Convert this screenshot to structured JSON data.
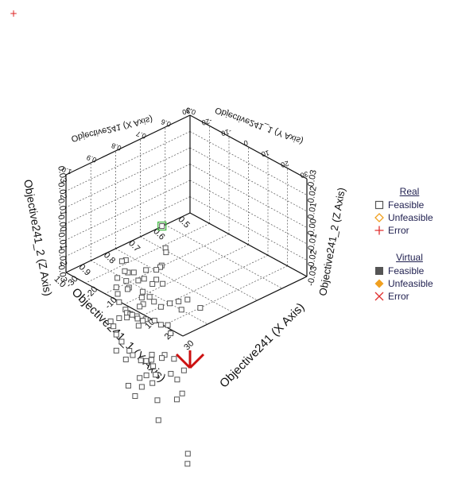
{
  "corner_marker": "+",
  "legend": {
    "real": {
      "title": "Real",
      "items": [
        {
          "label": "Feasible",
          "symbol": "open-square",
          "color": "#555555"
        },
        {
          "label": "Unfeasible",
          "symbol": "open-diamond",
          "color": "#f0a020"
        },
        {
          "label": "Error",
          "symbol": "plus",
          "color": "#e03030"
        }
      ]
    },
    "virtual": {
      "title": "Virtual",
      "items": [
        {
          "label": "Feasible",
          "symbol": "filled-square",
          "color": "#555555"
        },
        {
          "label": "Unfeasible",
          "symbol": "filled-diamond",
          "color": "#f0a020"
        },
        {
          "label": "Error",
          "symbol": "cross",
          "color": "#e03030"
        }
      ]
    }
  },
  "chart_data": {
    "type": "scatter3d",
    "x_axis": {
      "label": "Objective241 (X Axis)",
      "range": [
        -30,
        30
      ],
      "ticks": [
        -30,
        -20,
        -10,
        0,
        10,
        20,
        30
      ],
      "tick_labels": [
        "-30",
        "-20",
        "-10",
        "0",
        "10",
        "20",
        "30"
      ]
    },
    "y_axis": {
      "label": "Objective241_1 (Y Axis)",
      "range": [
        0.5,
        1.0
      ],
      "ticks": [
        0.5,
        0.6,
        0.7,
        0.8,
        0.9,
        1.0
      ],
      "tick_labels": [
        "0.5",
        "0.6",
        "0.7",
        "0.8",
        "0.9",
        "1.0"
      ]
    },
    "z_axis": {
      "label": "Objective241_2 (Z Axis)",
      "range": [
        -0.03,
        0.03
      ],
      "ticks": [
        -0.03,
        -0.02,
        -0.01,
        0.0,
        0.01,
        0.02,
        0.03
      ],
      "tick_labels": [
        "-0.03",
        "-0.02",
        "-0.01",
        "0.00",
        "0.01",
        "0.02",
        "0.03"
      ]
    },
    "grid": true,
    "legend_position": "right",
    "highlight_color": "#44bb44",
    "series": [
      {
        "name": "Feasible",
        "marker": "open-square",
        "color": "#555555",
        "points": [
          {
            "x": 18.0,
            "y": 0.99,
            "z": 0.029,
            "highlight": true
          },
          {
            "x": 16.0,
            "y": 0.96,
            "z": 0.012
          },
          {
            "x": 15.0,
            "y": 0.95,
            "z": 0.008
          },
          {
            "x": 14.0,
            "y": 0.96,
            "z": 0.0
          },
          {
            "x": 12.0,
            "y": 0.95,
            "z": -0.003
          },
          {
            "x": 10.0,
            "y": 0.95,
            "z": -0.006
          },
          {
            "x": 10.0,
            "y": 0.95,
            "z": -0.012
          },
          {
            "x": 12.0,
            "y": 0.94,
            "z": -0.014
          },
          {
            "x": 8.0,
            "y": 0.95,
            "z": -0.016
          },
          {
            "x": 6.0,
            "y": 0.96,
            "z": -0.008
          },
          {
            "x": 5.0,
            "y": 0.96,
            "z": -0.014
          },
          {
            "x": 2.0,
            "y": 0.96,
            "z": -0.017
          },
          {
            "x": 3.0,
            "y": 0.95,
            "z": -0.024
          },
          {
            "x": 4.0,
            "y": 0.93,
            "z": -0.028
          },
          {
            "x": 5.0,
            "y": 0.92,
            "z": -0.031
          },
          {
            "x": 6.0,
            "y": 0.9,
            "z": -0.035
          },
          {
            "x": 8.0,
            "y": 0.88,
            "z": -0.033
          },
          {
            "x": 10.0,
            "y": 0.86,
            "z": -0.032
          },
          {
            "x": 12.0,
            "y": 0.84,
            "z": -0.031
          },
          {
            "x": 14.0,
            "y": 0.88,
            "z": -0.033
          },
          {
            "x": 16.0,
            "y": 0.82,
            "z": -0.035
          },
          {
            "x": 2.0,
            "y": 0.94,
            "z": -0.033
          },
          {
            "x": 0.0,
            "y": 0.93,
            "z": -0.031
          },
          {
            "x": 1.0,
            "y": 0.97,
            "z": -0.012
          },
          {
            "x": -2.0,
            "y": 0.97,
            "z": -0.014
          },
          {
            "x": -4.0,
            "y": 0.95,
            "z": -0.026
          },
          {
            "x": -6.0,
            "y": 0.94,
            "z": -0.029
          },
          {
            "x": -8.0,
            "y": 0.93,
            "z": -0.026
          },
          {
            "x": -10.0,
            "y": 0.92,
            "z": -0.022
          },
          {
            "x": -12.0,
            "y": 0.9,
            "z": -0.018
          },
          {
            "x": -14.0,
            "y": 0.9,
            "z": -0.02
          },
          {
            "x": -10.0,
            "y": 0.95,
            "z": -0.024
          },
          {
            "x": -8.0,
            "y": 0.97,
            "z": -0.027
          },
          {
            "x": -6.0,
            "y": 0.98,
            "z": -0.029
          },
          {
            "x": -4.0,
            "y": 0.99,
            "z": -0.032
          },
          {
            "x": -2.0,
            "y": 0.98,
            "z": -0.036
          },
          {
            "x": 0.0,
            "y": 0.99,
            "z": -0.036
          },
          {
            "x": 4.0,
            "y": 0.97,
            "z": -0.031
          },
          {
            "x": 7.0,
            "y": 0.98,
            "z": -0.037
          },
          {
            "x": 6.0,
            "y": 0.99,
            "z": -0.04
          },
          {
            "x": 3.0,
            "y": 1.0,
            "z": -0.034
          },
          {
            "x": 0.0,
            "y": 0.95,
            "z": -0.041
          },
          {
            "x": 2.0,
            "y": 0.93,
            "z": -0.043
          },
          {
            "x": 4.0,
            "y": 0.91,
            "z": -0.044
          },
          {
            "x": 6.0,
            "y": 0.9,
            "z": -0.046
          },
          {
            "x": 7.0,
            "y": 0.88,
            "z": -0.047
          },
          {
            "x": 11.0,
            "y": 0.9,
            "z": -0.048
          },
          {
            "x": -2.0,
            "y": 0.91,
            "z": -0.048
          },
          {
            "x": -6.0,
            "y": 0.9,
            "z": -0.05
          },
          {
            "x": -10.0,
            "y": 0.89,
            "z": -0.051
          },
          {
            "x": -14.0,
            "y": 0.88,
            "z": -0.056
          },
          {
            "x": -18.0,
            "y": 0.88,
            "z": -0.059
          },
          {
            "x": -16.0,
            "y": 0.93,
            "z": -0.056
          },
          {
            "x": -12.0,
            "y": 0.95,
            "z": -0.055
          },
          {
            "x": -8.0,
            "y": 0.97,
            "z": -0.056
          },
          {
            "x": -4.0,
            "y": 0.98,
            "z": -0.057
          },
          {
            "x": 0.0,
            "y": 0.98,
            "z": -0.06
          },
          {
            "x": 3.0,
            "y": 0.99,
            "z": -0.06
          },
          {
            "x": 9.0,
            "y": 0.96,
            "z": -0.058
          },
          {
            "x": 13.0,
            "y": 0.94,
            "z": -0.057
          },
          {
            "x": 14.0,
            "y": 0.91,
            "z": -0.061
          },
          {
            "x": 9.0,
            "y": 0.92,
            "z": -0.063
          },
          {
            "x": 5.0,
            "y": 0.93,
            "z": -0.066
          },
          {
            "x": 1.0,
            "y": 0.92,
            "z": -0.07
          },
          {
            "x": -3.0,
            "y": 0.91,
            "z": -0.073
          },
          {
            "x": -12.0,
            "y": 0.9,
            "z": -0.079
          },
          {
            "x": 2.0,
            "y": 0.89,
            "z": -0.08
          },
          {
            "x": 6.0,
            "y": 0.86,
            "z": -0.079
          },
          {
            "x": 8.0,
            "y": 0.85,
            "z": -0.082
          },
          {
            "x": -22.0,
            "y": 0.86,
            "z": -0.083
          },
          {
            "x": -6.0,
            "y": 0.84,
            "z": -0.094
          },
          {
            "x": 8.0,
            "y": 0.83,
            "z": -0.092
          },
          {
            "x": -14.0,
            "y": 0.82,
            "z": -0.103
          },
          {
            "x": -20.0,
            "y": 0.8,
            "z": -0.114
          },
          {
            "x": -26.0,
            "y": 0.78,
            "z": -0.113
          },
          {
            "x": -8.0,
            "y": 0.8,
            "z": -0.121
          },
          {
            "x": 2.0,
            "y": 0.76,
            "z": -0.138
          },
          {
            "x": -2.0,
            "y": 0.73,
            "z": -0.149
          },
          {
            "x": -6.0,
            "y": 0.82,
            "z": -0.106
          },
          {
            "x": 4.0,
            "y": 0.82,
            "z": -0.099
          },
          {
            "x": -10.0,
            "y": 0.86,
            "z": -0.092
          },
          {
            "x": -4.0,
            "y": 0.88,
            "z": -0.085
          },
          {
            "x": 14.0,
            "y": 0.87,
            "z": -0.071
          },
          {
            "x": 2.0,
            "y": 0.9,
            "z": -0.074
          }
        ]
      }
    ]
  }
}
